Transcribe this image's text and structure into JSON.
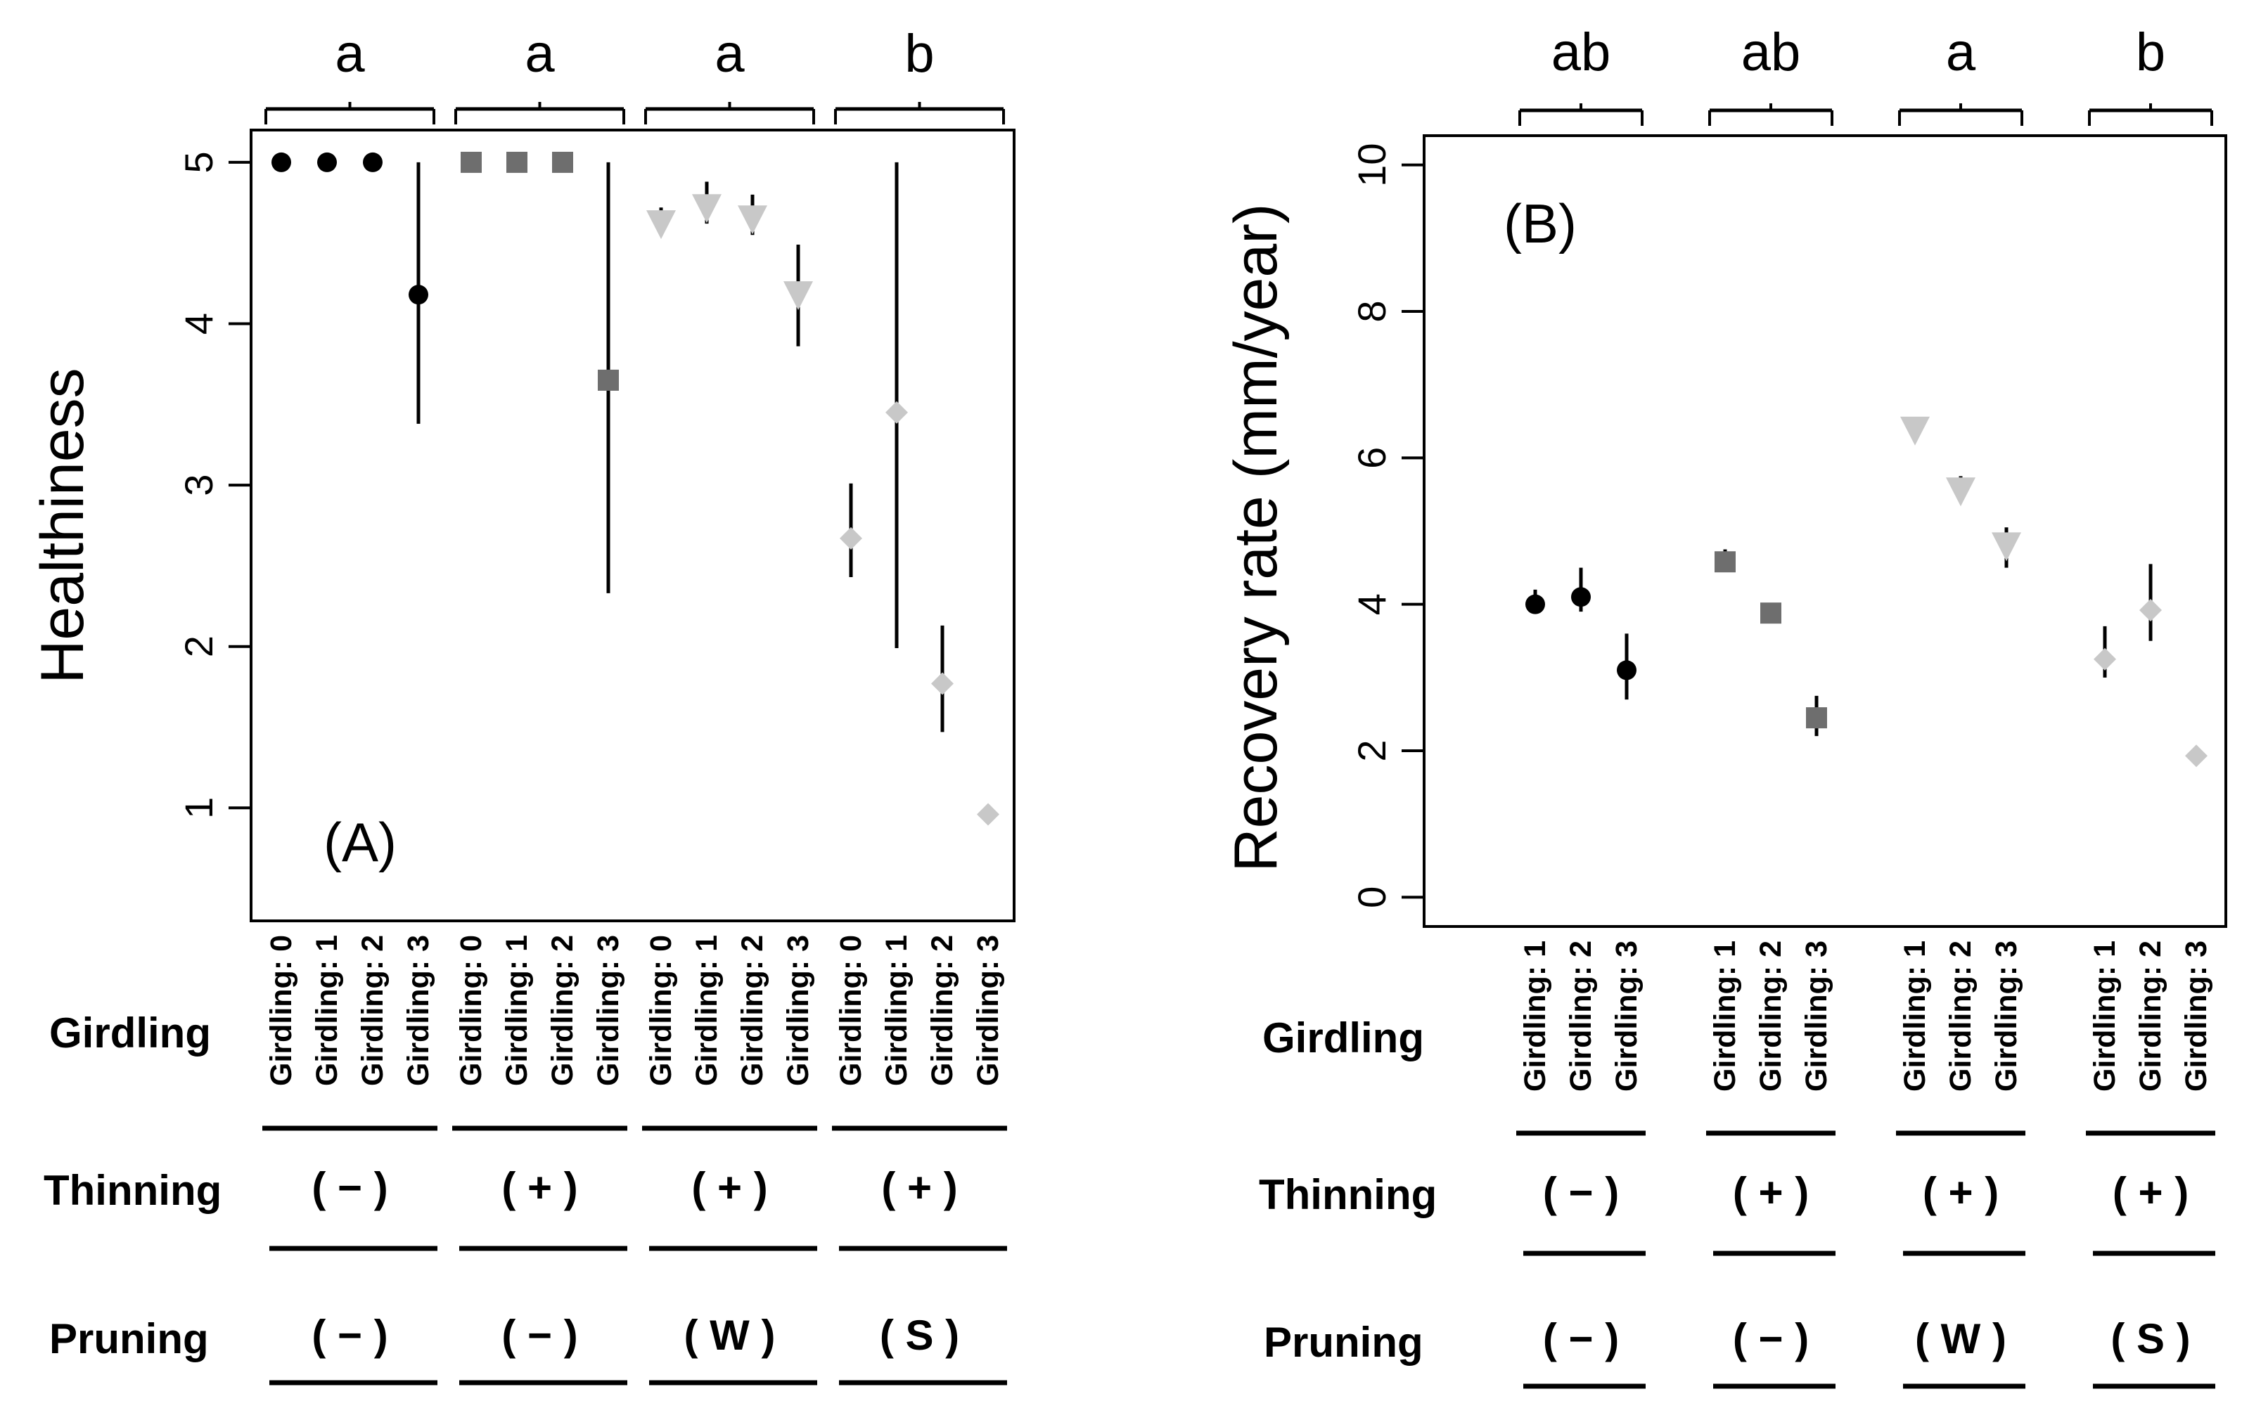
{
  "colors": {
    "frame": "#000000",
    "group_colors": [
      "#000000",
      "#6e6e6e",
      "#c8c8c8",
      "#c8c8c8"
    ]
  },
  "row_labels": {
    "girdling": "Girdling",
    "thinning": "Thinning",
    "pruning": "Pruning"
  },
  "chart_data": [
    {
      "type": "scatter",
      "panel_label": "(A)",
      "ylabel": "Healthiness",
      "ylim": [
        0.3,
        5.2
      ],
      "yticks": [
        "1",
        "2",
        "3",
        "4",
        "5"
      ],
      "tick_values": [
        1,
        2,
        3,
        4,
        5
      ],
      "groups": [
        {
          "letter": "a",
          "thinning": "( − )",
          "pruning": "( − )",
          "marker": "circle",
          "color": "#000000",
          "categories": [
            "Girdling: 0",
            "Girdling: 1",
            "Girdling: 2",
            "Girdling: 3"
          ],
          "values": [
            5.0,
            5.0,
            5.0,
            4.18
          ],
          "lower": [
            null,
            null,
            null,
            3.38
          ],
          "upper": [
            null,
            null,
            null,
            5.0
          ]
        },
        {
          "letter": "a",
          "thinning": "( + )",
          "pruning": "( − )",
          "marker": "square",
          "color": "#6e6e6e",
          "categories": [
            "Girdling: 0",
            "Girdling: 1",
            "Girdling: 2",
            "Girdling: 3"
          ],
          "values": [
            5.0,
            5.0,
            5.0,
            3.65
          ],
          "lower": [
            null,
            null,
            null,
            2.33
          ],
          "upper": [
            null,
            null,
            null,
            5.0
          ]
        },
        {
          "letter": "a",
          "thinning": "( + )",
          "pruning": "( W )",
          "marker": "triangle-down",
          "color": "#c8c8c8",
          "categories": [
            "Girdling: 0",
            "Girdling: 1",
            "Girdling: 2",
            "Girdling: 3"
          ],
          "values": [
            4.62,
            4.72,
            4.65,
            4.18
          ],
          "lower": [
            4.6,
            4.62,
            4.55,
            3.86
          ],
          "upper": [
            4.72,
            4.88,
            4.8,
            4.49
          ]
        },
        {
          "letter": "b",
          "thinning": "( + )",
          "pruning": "( S )",
          "marker": "diamond",
          "color": "#c8c8c8",
          "categories": [
            "Girdling: 0",
            "Girdling: 1",
            "Girdling: 2",
            "Girdling: 3"
          ],
          "values": [
            2.67,
            3.45,
            1.77,
            0.96
          ],
          "lower": [
            2.43,
            1.99,
            1.47,
            null
          ],
          "upper": [
            3.01,
            5.0,
            2.13,
            null
          ]
        }
      ]
    },
    {
      "type": "scatter",
      "panel_label": "(B)",
      "ylabel": "Recovery rate (mm/year)",
      "ylim": [
        -0.4,
        10.4
      ],
      "yticks": [
        "0",
        "2",
        "4",
        "6",
        "8",
        "10"
      ],
      "tick_values": [
        0,
        2,
        4,
        6,
        8,
        10
      ],
      "groups": [
        {
          "letter": "ab",
          "thinning": "( − )",
          "pruning": "( − )",
          "marker": "circle",
          "color": "#000000",
          "categories": [
            "Girdling: 1",
            "Girdling: 2",
            "Girdling: 3"
          ],
          "values": [
            4.0,
            4.1,
            3.1
          ],
          "lower": [
            3.9,
            3.9,
            2.7
          ],
          "upper": [
            4.2,
            4.5,
            3.6
          ]
        },
        {
          "letter": "ab",
          "thinning": "( + )",
          "pruning": "( − )",
          "marker": "square",
          "color": "#6e6e6e",
          "categories": [
            "Girdling: 1",
            "Girdling: 2",
            "Girdling: 3"
          ],
          "values": [
            4.58,
            3.88,
            2.45
          ],
          "lower": [
            4.5,
            null,
            2.2
          ],
          "upper": [
            4.75,
            null,
            2.75
          ]
        },
        {
          "letter": "a",
          "thinning": "( + )",
          "pruning": "( W )",
          "marker": "triangle-down",
          "color": "#c8c8c8",
          "categories": [
            "Girdling: 1",
            "Girdling: 2",
            "Girdling: 3"
          ],
          "values": [
            6.38,
            5.55,
            4.8
          ],
          "lower": [
            6.3,
            5.45,
            4.5
          ],
          "upper": [
            6.55,
            5.75,
            5.05
          ]
        },
        {
          "letter": "b",
          "thinning": "( + )",
          "pruning": "( S )",
          "marker": "diamond",
          "color": "#c8c8c8",
          "categories": [
            "Girdling: 1",
            "Girdling: 2",
            "Girdling: 3"
          ],
          "values": [
            3.25,
            3.92,
            1.93
          ],
          "lower": [
            3.0,
            3.5,
            null
          ],
          "upper": [
            3.7,
            4.55,
            null
          ]
        }
      ]
    }
  ]
}
